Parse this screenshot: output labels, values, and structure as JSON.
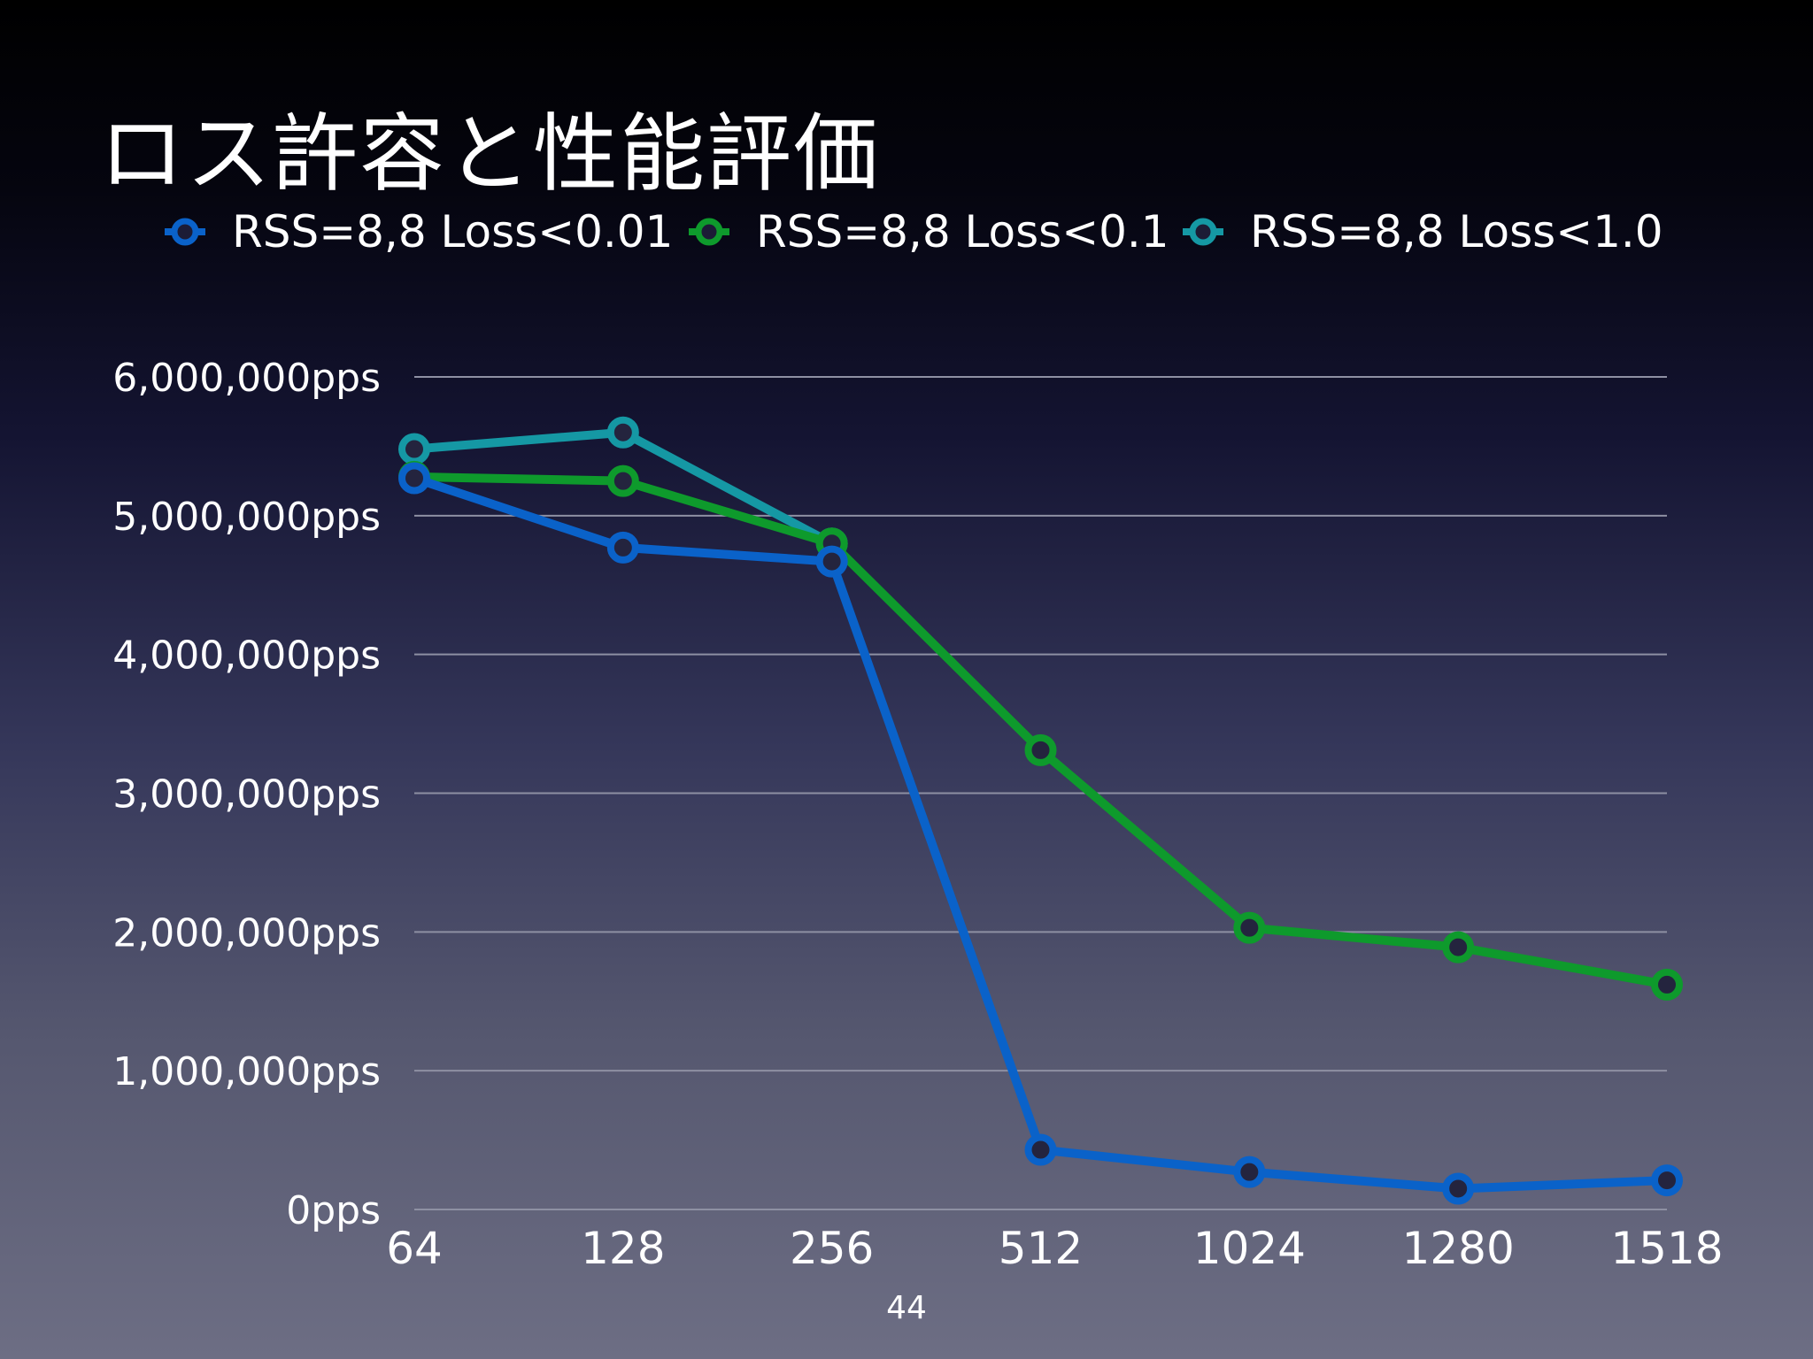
{
  "slide": {
    "title": "ロス許容と性能評価",
    "page_number": "44"
  },
  "colors": {
    "series1": "#0a62c9",
    "series2": "#0e9a2c",
    "series3": "#1598a4",
    "grid": "#8e90a3",
    "text": "#ffffff"
  },
  "chart_data": {
    "type": "line",
    "categories": [
      "64",
      "128",
      "256",
      "512",
      "1024",
      "1280",
      "1518"
    ],
    "y_ticks": [
      "0pps",
      "1,000,000pps",
      "2,000,000pps",
      "3,000,000pps",
      "4,000,000pps",
      "5,000,000pps",
      "6,000,000pps"
    ],
    "ylim": [
      0,
      6000000
    ],
    "grid": true,
    "legend_position": "top",
    "series": [
      {
        "name": "RSS=8,8 Loss<0.01",
        "color": "#0a62c9",
        "values": [
          5270000,
          4770000,
          4670000,
          430000,
          270000,
          150000,
          210000
        ]
      },
      {
        "name": "RSS=8,8 Loss<0.1",
        "color": "#0e9a2c",
        "values": [
          5280000,
          5250000,
          4800000,
          3310000,
          2030000,
          1890000,
          1620000
        ]
      },
      {
        "name": "RSS=8,8 Loss<1.0",
        "color": "#1598a4",
        "values": [
          5480000,
          5600000,
          4800000,
          null,
          null,
          null,
          null
        ]
      }
    ]
  }
}
